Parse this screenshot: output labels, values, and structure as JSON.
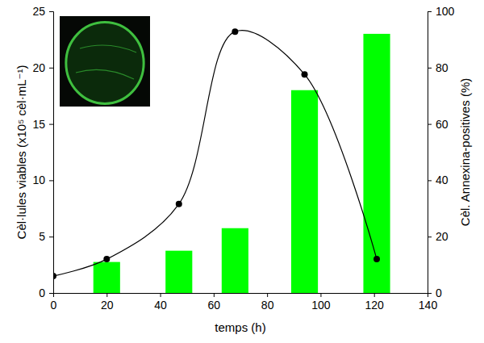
{
  "chart_data": {
    "type": "combo",
    "x_label": "temps (h)",
    "y_label": "Cèl·lules viables (x10⁵ cèl·mL⁻¹)",
    "y2_label": "Cèl. Annexina-positives (%)",
    "xlim": [
      0,
      140
    ],
    "xticks": [
      0,
      20,
      40,
      60,
      80,
      100,
      120,
      140
    ],
    "ylim": [
      0,
      25
    ],
    "yticks": [
      0,
      5,
      10,
      15,
      20,
      25
    ],
    "y2lim": [
      0,
      100
    ],
    "y2ticks": [
      0,
      20,
      40,
      60,
      80,
      100
    ],
    "series": [
      {
        "type": "bar",
        "axis": "y2",
        "color": "#00ff00",
        "x": [
          20,
          47,
          68,
          94,
          121
        ],
        "values": [
          11,
          15,
          23,
          72,
          92
        ]
      },
      {
        "type": "line",
        "axis": "y",
        "color": "#000000",
        "marker": "circle",
        "line_style": "solid",
        "x": [
          0,
          20,
          47,
          68,
          94,
          121
        ],
        "values": [
          1.5,
          3.0,
          7.9,
          23.2,
          19.4,
          3.0
        ]
      }
    ]
  }
}
